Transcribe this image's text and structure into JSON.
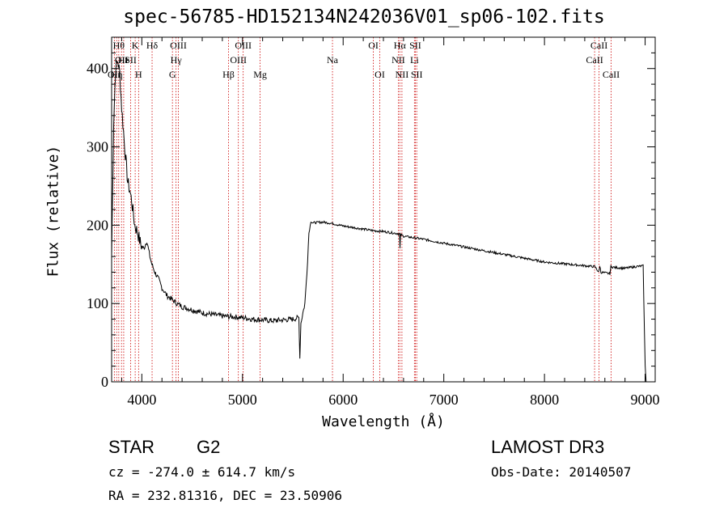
{
  "header": {
    "title": "spec-56785-HD152134N242036V01_sp06-102.fits"
  },
  "footer": {
    "object_type": "STAR",
    "object_class": "G2",
    "survey": "LAMOST DR3",
    "redshift": "cz = -274.0 ± 614.7 km/s",
    "obs_date": "Obs-Date: 20140507",
    "coords": "RA = 232.81316, DEC =  23.50906"
  },
  "chart_data": {
    "type": "line",
    "title": "spec-56785-HD152134N242036V01_sp06-102.fits",
    "xlabel": "Wavelength (Å)",
    "ylabel": "Flux (relative)",
    "xlim": [
      3700,
      9100
    ],
    "ylim": [
      0,
      440
    ],
    "xticks": [
      4000,
      5000,
      6000,
      7000,
      8000,
      9000
    ],
    "yticks": [
      0,
      100,
      200,
      300,
      400
    ],
    "spectrum": {
      "wavelength": [
        3700,
        3720,
        3740,
        3760,
        3780,
        3800,
        3830,
        3860,
        3880,
        3900,
        3930,
        3960,
        3990,
        4020,
        4050,
        4080,
        4100,
        4130,
        4170,
        4200,
        4250,
        4300,
        4350,
        4400,
        4500,
        4600,
        4700,
        4800,
        4900,
        5000,
        5100,
        5200,
        5300,
        5400,
        5500,
        5560,
        5570,
        5580,
        5600,
        5620,
        5640,
        5660,
        5680,
        5700,
        5800,
        5900,
        6000,
        6100,
        6200,
        6300,
        6400,
        6500,
        6560,
        6565,
        6570,
        6600,
        6700,
        6800,
        7000,
        7500,
        8000,
        8500,
        8540,
        8550,
        8560,
        8650,
        8660,
        8700,
        8800,
        8900,
        8980,
        9000,
        9010
      ],
      "flux": [
        160,
        330,
        400,
        410,
        395,
        350,
        300,
        255,
        245,
        230,
        200,
        190,
        175,
        170,
        180,
        160,
        150,
        140,
        130,
        120,
        110,
        105,
        100,
        96,
        92,
        88,
        86,
        84,
        83,
        82,
        80,
        79,
        78,
        79,
        80,
        82,
        30,
        75,
        88,
        100,
        140,
        190,
        205,
        203,
        204,
        202,
        199,
        197,
        195,
        193,
        192,
        190,
        189,
        170,
        188,
        186,
        184,
        182,
        177,
        165,
        153,
        147,
        140,
        148,
        140,
        138,
        147,
        146,
        145,
        147,
        148,
        20,
        0
      ]
    },
    "emission_lines": [
      {
        "wavelength": 3727,
        "label": "OII",
        "row": 2
      },
      {
        "wavelength": 3750,
        "label": "Hη",
        "row": 2
      },
      {
        "wavelength": 3771,
        "label": "Hθ",
        "row": 0
      },
      {
        "wavelength": 3798,
        "label": "OII",
        "row": 1
      },
      {
        "wavelength": 3820,
        "label": "He",
        "row": 1
      },
      {
        "wavelength": 3889,
        "label": "SII",
        "row": 1
      },
      {
        "wavelength": 3934,
        "label": "K",
        "row": 0
      },
      {
        "wavelength": 3968,
        "label": "H",
        "row": 2
      },
      {
        "wavelength": 4102,
        "label": "Hδ",
        "row": 0
      },
      {
        "wavelength": 4304,
        "label": "G",
        "row": 2
      },
      {
        "wavelength": 4340,
        "label": "Hγ",
        "row": 1
      },
      {
        "wavelength": 4363,
        "label": "OIII",
        "row": 0
      },
      {
        "wavelength": 4861,
        "label": "Hβ",
        "row": 2
      },
      {
        "wavelength": 4959,
        "label": "OIII",
        "row": 1
      },
      {
        "wavelength": 5007,
        "label": "OIII",
        "row": 0
      },
      {
        "wavelength": 5175,
        "label": "Mg",
        "row": 2
      },
      {
        "wavelength": 5894,
        "label": "Na",
        "row": 1
      },
      {
        "wavelength": 6300,
        "label": "OI",
        "row": 0
      },
      {
        "wavelength": 6364,
        "label": "OI",
        "row": 2
      },
      {
        "wavelength": 6548,
        "label": "NII",
        "row": 1
      },
      {
        "wavelength": 6563,
        "label": "Hα",
        "row": 0
      },
      {
        "wavelength": 6584,
        "label": "NII",
        "row": 2
      },
      {
        "wavelength": 6708,
        "label": "Li",
        "row": 1
      },
      {
        "wavelength": 6717,
        "label": "SII",
        "row": 0
      },
      {
        "wavelength": 6731,
        "label": "SII",
        "row": 2
      },
      {
        "wavelength": 8498,
        "label": "CaII",
        "row": 1
      },
      {
        "wavelength": 8542,
        "label": "CaII",
        "row": 0
      },
      {
        "wavelength": 8662,
        "label": "CaII",
        "row": 2
      }
    ],
    "line_color": "#cc0000",
    "spectrum_color": "#000000"
  }
}
